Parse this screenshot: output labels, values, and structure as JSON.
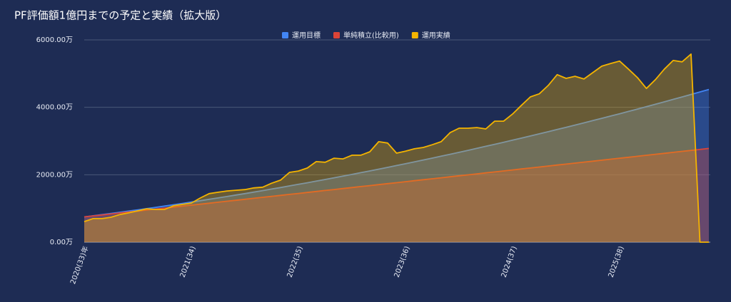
{
  "chart_data": {
    "type": "area",
    "title": "PF評価額1億円までの予定と実績（拡大版）",
    "categories": [
      "2020(33)年",
      null,
      null,
      null,
      null,
      null,
      null,
      null,
      null,
      null,
      null,
      null,
      "2021(34)",
      null,
      null,
      null,
      null,
      null,
      null,
      null,
      null,
      null,
      null,
      null,
      "2022(35)",
      null,
      null,
      null,
      null,
      null,
      null,
      null,
      null,
      null,
      null,
      null,
      "2023(36)",
      null,
      null,
      null,
      null,
      null,
      null,
      null,
      null,
      null,
      null,
      null,
      "2024(37)",
      null,
      null,
      null,
      null,
      null,
      null,
      null,
      null,
      null,
      null,
      null,
      "2025(38)",
      null,
      null,
      null,
      null,
      null,
      null,
      null,
      null,
      null,
      null
    ],
    "series": [
      {
        "name": "運用目標",
        "color": "#4285f4",
        "values": [
          750,
          783,
          817,
          852,
          887,
          923,
          959,
          996,
          1033,
          1071,
          1110,
          1149,
          1189,
          1230,
          1271,
          1313,
          1355,
          1398,
          1441,
          1485,
          1530,
          1575,
          1621,
          1668,
          1715,
          1763,
          1811,
          1860,
          1909,
          1959,
          2010,
          2061,
          2113,
          2166,
          2219,
          2273,
          2327,
          2382,
          2437,
          2493,
          2550,
          2607,
          2665,
          2724,
          2783,
          2843,
          2903,
          2964,
          3025,
          3087,
          3150,
          3213,
          3277,
          3342,
          3407,
          3473,
          3539,
          3606,
          3673,
          3741,
          3810,
          3879,
          3949,
          4020,
          4091,
          4163,
          4235,
          4308,
          4381,
          4455,
          4530
        ]
      },
      {
        "name": "単純積立(比較用)",
        "color": "#db4437",
        "values": [
          750,
          779,
          808,
          837,
          866,
          895,
          924,
          953,
          982,
          1011,
          1040,
          1069,
          1098,
          1127,
          1156,
          1185,
          1214,
          1243,
          1272,
          1301,
          1330,
          1359,
          1388,
          1417,
          1446,
          1475,
          1504,
          1533,
          1562,
          1591,
          1620,
          1649,
          1678,
          1707,
          1736,
          1765,
          1794,
          1823,
          1852,
          1881,
          1910,
          1939,
          1968,
          1997,
          2026,
          2055,
          2084,
          2113,
          2142,
          2171,
          2200,
          2229,
          2258,
          2287,
          2316,
          2345,
          2374,
          2403,
          2432,
          2461,
          2490,
          2519,
          2548,
          2577,
          2606,
          2635,
          2664,
          2693,
          2722,
          2751,
          2780
        ]
      },
      {
        "name": "運用実績",
        "color": "#f4b400",
        "values": [
          610,
          700,
          700,
          740,
          820,
          870,
          930,
          990,
          970,
          970,
          1080,
          1120,
          1160,
          1310,
          1440,
          1480,
          1520,
          1540,
          1560,
          1610,
          1630,
          1750,
          1840,
          2070,
          2110,
          2200,
          2390,
          2370,
          2490,
          2470,
          2580,
          2580,
          2680,
          2980,
          2940,
          2640,
          2700,
          2770,
          2810,
          2890,
          2980,
          3250,
          3380,
          3380,
          3400,
          3360,
          3590,
          3590,
          3800,
          4060,
          4310,
          4400,
          4650,
          4970,
          4860,
          4920,
          4840,
          5030,
          5220,
          5300,
          5370,
          5130,
          4880,
          4560,
          4820,
          5130,
          5390,
          5350,
          5580,
          0,
          0
        ]
      }
    ],
    "ylim": [
      0,
      6000
    ],
    "yticks": [
      {
        "value": 0,
        "label": "0.00万"
      },
      {
        "value": 2000,
        "label": "2000.00万"
      },
      {
        "value": 4000,
        "label": "4000.00万"
      },
      {
        "value": 6000,
        "label": "6000.00万"
      }
    ],
    "grid": true
  }
}
